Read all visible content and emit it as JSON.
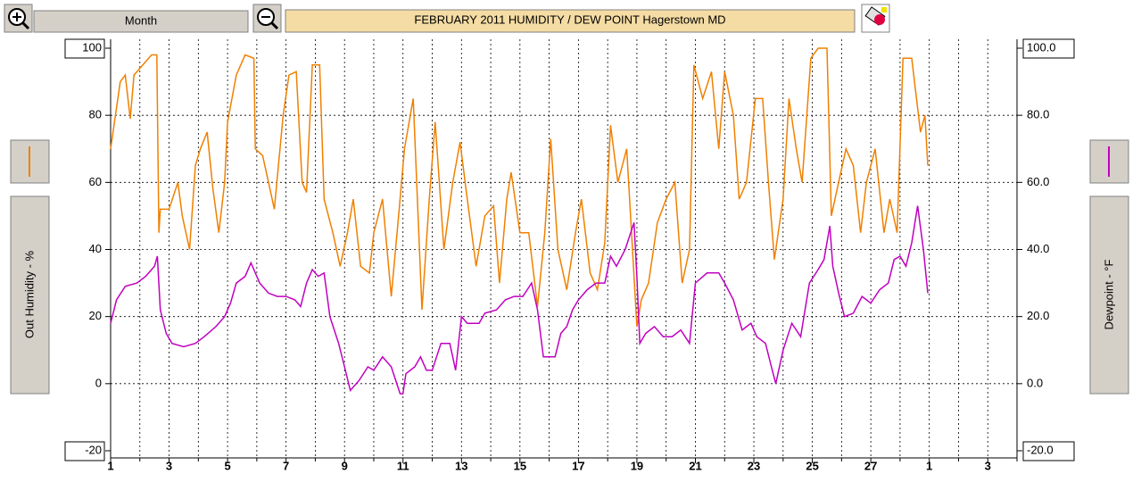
{
  "toolbar": {
    "period_button": "Month"
  },
  "chart_data": {
    "type": "line",
    "title": "FEBRUARY 2011   HUMIDITY / DEW POINT  Hagerstown MD",
    "ylabel": "Out Humidity - %",
    "y2label": "Dewpoint - °F",
    "xlim": [
      0,
      31
    ],
    "xticks": [
      {
        "value": 0,
        "label": "1"
      },
      {
        "value": 2,
        "label": "3"
      },
      {
        "value": 4,
        "label": "5"
      },
      {
        "value": 6,
        "label": "7"
      },
      {
        "value": 8,
        "label": "9"
      },
      {
        "value": 10,
        "label": "11"
      },
      {
        "value": 12,
        "label": "13"
      },
      {
        "value": 14,
        "label": "15"
      },
      {
        "value": 16,
        "label": "17"
      },
      {
        "value": 18,
        "label": "19"
      },
      {
        "value": 20,
        "label": "21"
      },
      {
        "value": 22,
        "label": "23"
      },
      {
        "value": 24,
        "label": "25"
      },
      {
        "value": 26,
        "label": "27"
      },
      {
        "value": 28,
        "label": "1"
      },
      {
        "value": 30,
        "label": "3"
      }
    ],
    "xminorticks": [
      1,
      3,
      5,
      7,
      9,
      11,
      13,
      15,
      17,
      19,
      21,
      23,
      25,
      27,
      29,
      31
    ],
    "ylim": [
      -20,
      100
    ],
    "yticks": [
      -20,
      0,
      20,
      40,
      60,
      80,
      100
    ],
    "y2lim": [
      -20,
      100
    ],
    "y2ticks": [
      {
        "value": -20,
        "label": "-20.0"
      },
      {
        "value": 0,
        "label": "0.0"
      },
      {
        "value": 20,
        "label": "20.0"
      },
      {
        "value": 40,
        "label": "40.0"
      },
      {
        "value": 60,
        "label": "60.0"
      },
      {
        "value": 80,
        "label": "80.0"
      },
      {
        "value": 100,
        "label": "100.0"
      }
    ],
    "grid": true,
    "series": [
      {
        "color": "#f08000",
        "axis": "y",
        "x": [
          0,
          0.33,
          0.5,
          0.67,
          0.8,
          1.1,
          1.4,
          1.58,
          1.65,
          1.7,
          2,
          2.3,
          2.45,
          2.7,
          2.9,
          3.07,
          3.3,
          3.5,
          3.7,
          3.9,
          4,
          4.3,
          4.6,
          4.9,
          4.95,
          5.2,
          5.4,
          5.6,
          5.9,
          6.1,
          6.35,
          6.55,
          6.7,
          6.9,
          7.15,
          7.3,
          7.6,
          7.85,
          8.1,
          8.3,
          8.55,
          8.85,
          9,
          9.3,
          9.6,
          9.85,
          10.05,
          10.35,
          10.65,
          10.9,
          11.1,
          11.4,
          11.7,
          11.95,
          12.2,
          12.5,
          12.8,
          13.1,
          13.3,
          13.55,
          13.7,
          14,
          14.3,
          14.6,
          14.85,
          15.05,
          15.3,
          15.6,
          15.9,
          16.1,
          16.4,
          16.65,
          16.9,
          17.1,
          17.35,
          17.65,
          17.85,
          18,
          18.15,
          18.4,
          18.7,
          19,
          19.3,
          19.55,
          19.8,
          19.95,
          20.25,
          20.55,
          20.8,
          21,
          21.3,
          21.5,
          21.75,
          22.05,
          22.3,
          22.5,
          22.7,
          23,
          23.2,
          23.45,
          23.65,
          23.95,
          24.2,
          24.5,
          24.65,
          24.85,
          25.15,
          25.4,
          25.65,
          25.85,
          26.15,
          26.45,
          26.65,
          26.9,
          27.1,
          27.4,
          27.7,
          27.85,
          27.95
        ],
        "values": [
          70,
          90,
          92,
          79,
          92,
          95,
          98,
          98,
          45,
          52,
          52,
          60,
          50,
          40,
          65,
          70,
          75,
          58,
          45,
          60,
          78,
          92,
          98,
          97,
          70,
          68,
          60,
          52,
          80,
          92,
          93,
          60,
          57,
          95,
          95,
          55,
          45,
          35,
          45,
          55,
          35,
          33,
          45,
          55,
          26,
          50,
          70,
          85,
          22,
          55,
          78,
          40,
          60,
          72,
          55,
          35,
          50,
          53,
          30,
          55,
          63,
          45,
          45,
          23,
          45,
          73,
          40,
          28,
          45,
          55,
          33,
          28,
          42,
          77,
          60,
          70,
          40,
          17,
          25,
          30,
          48,
          55,
          60,
          30,
          40,
          95,
          85,
          93,
          70,
          93,
          80,
          55,
          60,
          85,
          85,
          60,
          37,
          55,
          85,
          70,
          60,
          97,
          100,
          100,
          50,
          58,
          70,
          65,
          45,
          60,
          70,
          45,
          55,
          45,
          97,
          97,
          75,
          80,
          65
        ]
      },
      {
        "color": "#c000c0",
        "axis": "y2",
        "x": [
          0,
          0.2,
          0.5,
          0.9,
          1.2,
          1.5,
          1.6,
          1.7,
          1.9,
          2.1,
          2.5,
          2.9,
          3.2,
          3.6,
          3.9,
          4.1,
          4.3,
          4.6,
          4.8,
          5.1,
          5.4,
          5.7,
          6,
          6.3,
          6.5,
          6.7,
          6.9,
          7.1,
          7.3,
          7.5,
          7.8,
          8,
          8.2,
          8.5,
          8.8,
          9,
          9.3,
          9.6,
          9.9,
          10,
          10.1,
          10.4,
          10.6,
          10.8,
          11,
          11.3,
          11.6,
          11.8,
          12,
          12.2,
          12.6,
          12.8,
          13.2,
          13.5,
          13.8,
          14.1,
          14.4,
          14.6,
          14.8,
          15,
          15.2,
          15.4,
          15.6,
          15.8,
          16,
          16.3,
          16.6,
          16.9,
          17.1,
          17.3,
          17.6,
          17.9,
          18,
          18.1,
          18.3,
          18.6,
          18.9,
          19.2,
          19.5,
          19.8,
          20,
          20.4,
          20.8,
          21,
          21.3,
          21.6,
          21.9,
          22.1,
          22.4,
          22.6,
          22.75,
          23,
          23.3,
          23.6,
          23.9,
          24.2,
          24.4,
          24.6,
          24.7,
          24.9,
          25.1,
          25.4,
          25.7,
          26,
          26.3,
          26.6,
          26.8,
          27,
          27.2,
          27.4,
          27.6,
          27.8,
          27.95
        ],
        "values": [
          18,
          25,
          29,
          30,
          32,
          35,
          38,
          22,
          15,
          12,
          11,
          12,
          14,
          17,
          20,
          24,
          30,
          32,
          36,
          30,
          27,
          26,
          26,
          25,
          23,
          30,
          34,
          32,
          33,
          20,
          12,
          5,
          -2,
          1,
          5,
          4,
          8,
          5,
          -3,
          -3,
          3,
          5,
          8,
          4,
          4,
          12,
          12,
          4,
          20,
          18,
          18,
          21,
          22,
          25,
          26,
          26,
          30,
          22,
          8,
          8,
          8,
          15,
          17,
          22,
          25,
          28,
          30,
          30,
          38,
          35,
          40,
          48,
          32,
          12,
          15,
          17,
          14,
          14,
          16,
          12,
          30,
          33,
          33,
          30,
          25,
          16,
          18,
          14,
          12,
          5,
          0,
          10,
          18,
          14,
          30,
          34,
          37,
          47,
          35,
          27,
          20,
          21,
          26,
          24,
          28,
          30,
          37,
          38,
          35,
          42,
          53,
          40,
          27
        ]
      }
    ]
  }
}
